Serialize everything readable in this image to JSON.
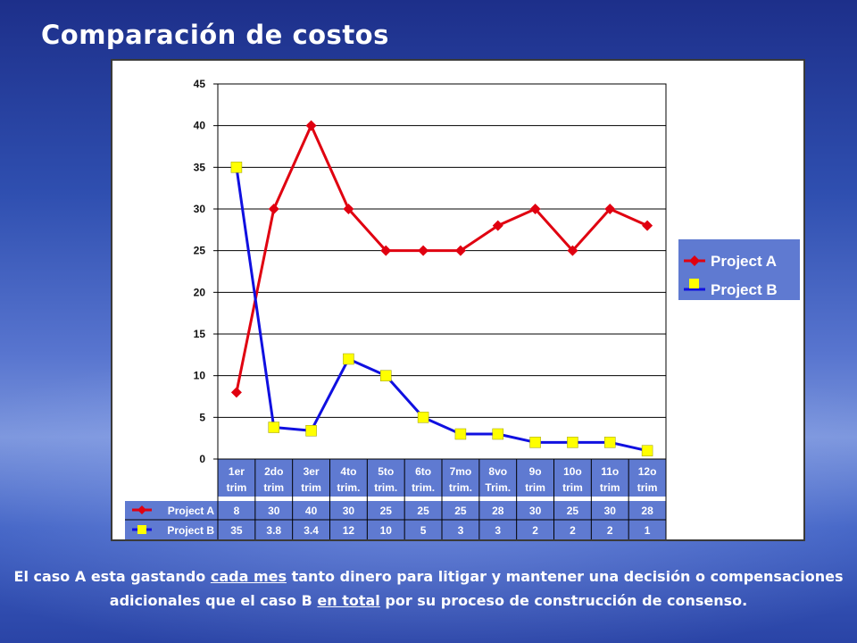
{
  "slide": {
    "title": "Comparación de costos",
    "caption": {
      "p1": "El caso A esta gastando ",
      "u1": "cada mes",
      "p2": " tanto dinero para litigar y mantener una decisión o compensaciones  adicionales que el caso B ",
      "u2": "en total",
      "p3": " por su proceso de construcción de consenso."
    }
  },
  "chart_data": {
    "type": "line",
    "title": "",
    "xlabel": "",
    "ylabel": "",
    "ylim": [
      0,
      45
    ],
    "yticks": [
      0,
      5,
      10,
      15,
      20,
      25,
      30,
      35,
      40,
      45
    ],
    "grid": true,
    "legend_position": "right",
    "categories": [
      [
        "1er",
        "trim"
      ],
      [
        "2do",
        "trim"
      ],
      [
        "3er",
        "trim"
      ],
      [
        "4to",
        "trim."
      ],
      [
        "5to",
        "trim."
      ],
      [
        "6to",
        "trim."
      ],
      [
        "7mo",
        "trim."
      ],
      [
        "8vo",
        "Trim."
      ],
      [
        "9o",
        "trim"
      ],
      [
        "10o",
        "trim"
      ],
      [
        "11o",
        "trim"
      ],
      [
        "12o",
        "trim"
      ]
    ],
    "series": [
      {
        "name": "Project A",
        "color": "#e00010",
        "marker": "diamond",
        "values": [
          8,
          30,
          40,
          30,
          25,
          25,
          25,
          28,
          30,
          25,
          30,
          28
        ],
        "labels": [
          "8",
          "30",
          "40",
          "30",
          "25",
          "25",
          "25",
          "28",
          "30",
          "25",
          "30",
          "28"
        ]
      },
      {
        "name": "Project B",
        "color": "#1010e0",
        "marker_color": "#ffff00",
        "marker": "square",
        "values": [
          35,
          3.8,
          3.4,
          12,
          10,
          5,
          3,
          3,
          2,
          2,
          2,
          1
        ],
        "labels": [
          "35",
          "3.8",
          "3.4",
          "12",
          "10",
          "5",
          "3",
          "3",
          "2",
          "2",
          "2",
          "1"
        ]
      }
    ]
  }
}
